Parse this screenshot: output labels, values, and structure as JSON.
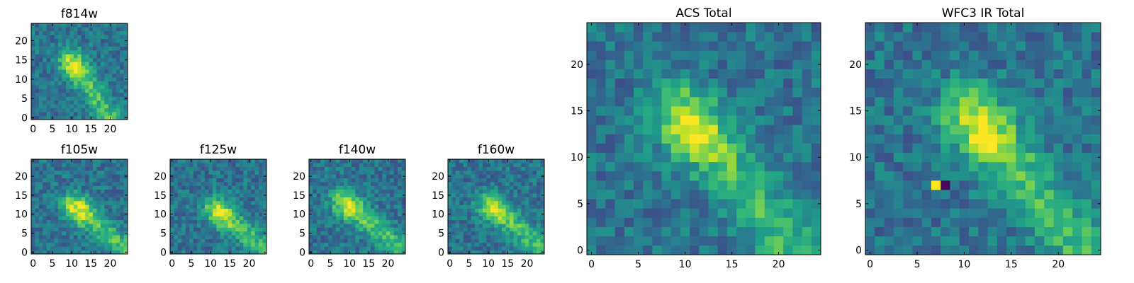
{
  "chart_data": [
    {
      "type": "heatmap",
      "title": "f814w",
      "colormap": "viridis",
      "xlim": [
        -0.5,
        24.5
      ],
      "ylim": [
        -0.5,
        24.5
      ],
      "xticks": [
        "0",
        "5",
        "10",
        "15",
        "20"
      ],
      "yticks": [
        "0",
        "5",
        "10",
        "15",
        "20"
      ],
      "feature": {
        "ridge_angle_deg": -55,
        "peak": [
          11,
          13
        ]
      }
    },
    {
      "type": "heatmap",
      "title": "f105w",
      "colormap": "viridis",
      "xlim": [
        -0.5,
        24.5
      ],
      "ylim": [
        -0.5,
        24.5
      ],
      "xticks": [
        "0",
        "5",
        "10",
        "15",
        "20"
      ],
      "yticks": [
        "0",
        "5",
        "10",
        "15",
        "20"
      ],
      "feature": {
        "ridge_angle_deg": -40,
        "peak": [
          12,
          11
        ]
      }
    },
    {
      "type": "heatmap",
      "title": "f125w",
      "colormap": "viridis",
      "xlim": [
        -0.5,
        24.5
      ],
      "ylim": [
        -0.5,
        24.5
      ],
      "xticks": [
        "0",
        "5",
        "10",
        "15",
        "20"
      ],
      "yticks": [
        "0",
        "5",
        "10",
        "15",
        "20"
      ],
      "feature": {
        "ridge_angle_deg": -40,
        "peak": [
          13,
          10
        ]
      }
    },
    {
      "type": "heatmap",
      "title": "f140w",
      "colormap": "viridis",
      "xlim": [
        -0.5,
        24.5
      ],
      "ylim": [
        -0.5,
        24.5
      ],
      "xticks": [
        "0",
        "5",
        "10",
        "15",
        "20"
      ],
      "yticks": [
        "0",
        "5",
        "10",
        "15",
        "20"
      ],
      "feature": {
        "ridge_angle_deg": -40,
        "peak": [
          10,
          12
        ]
      }
    },
    {
      "type": "heatmap",
      "title": "f160w",
      "colormap": "viridis",
      "xlim": [
        -0.5,
        24.5
      ],
      "ylim": [
        -0.5,
        24.5
      ],
      "xticks": [
        "0",
        "5",
        "10",
        "15",
        "20"
      ],
      "yticks": [
        "0",
        "5",
        "10",
        "15",
        "20"
      ],
      "feature": {
        "ridge_angle_deg": -40,
        "peak": [
          12,
          11
        ]
      }
    },
    {
      "type": "heatmap",
      "title": "ACS Total",
      "colormap": "viridis",
      "xlim": [
        -0.5,
        24.5
      ],
      "ylim": [
        -0.5,
        24.5
      ],
      "xticks": [
        "0",
        "5",
        "10",
        "15",
        "20"
      ],
      "yticks": [
        "0",
        "5",
        "10",
        "15",
        "20"
      ],
      "feature": {
        "ridge_angle_deg": -50,
        "peak": [
          11,
          13
        ]
      }
    },
    {
      "type": "heatmap",
      "title": "WFC3 IR Total",
      "colormap": "viridis",
      "xlim": [
        -0.5,
        24.5
      ],
      "ylim": [
        -0.5,
        24.5
      ],
      "xticks": [
        "0",
        "5",
        "10",
        "15",
        "20"
      ],
      "yticks": [
        "0",
        "5",
        "10",
        "15",
        "20"
      ],
      "feature": {
        "ridge_angle_deg": -50,
        "peak": [
          12,
          13
        ],
        "hot_pixel": [
          7,
          7
        ]
      }
    }
  ]
}
